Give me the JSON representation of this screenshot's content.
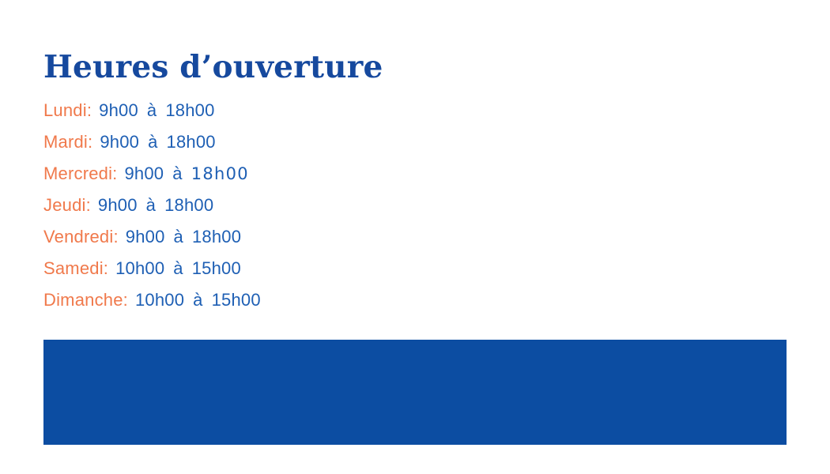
{
  "page": {
    "title": "Heures d’ouverture",
    "colors": {
      "title_blue": "#16499E",
      "hours_blue": "#1E5FB4",
      "day_orange": "#F0794B",
      "banner_blue": "#0C4DA2",
      "background": "#FFFFFF"
    }
  },
  "hours": {
    "rows": [
      {
        "day": "Lundi:",
        "start": "9h00",
        "conj": "à",
        "end": "18h00"
      },
      {
        "day": "Mardi:",
        "start": "9h00",
        "conj": "à",
        "end": "18h00"
      },
      {
        "day": "Mercredi:",
        "start": "9h00",
        "conj": "à",
        "end": "18h00"
      },
      {
        "day": "Jeudi:",
        "start": "9h00",
        "conj": "à",
        "end": "18h00"
      },
      {
        "day": "Vendredi:",
        "start": "9h00",
        "conj": "à",
        "end": "18h00"
      },
      {
        "day": "Samedi:",
        "start": "10h00",
        "conj": "à",
        "end": "15h00"
      },
      {
        "day": "Dimanche:",
        "start": "10h00",
        "conj": "à",
        "end": "15h00"
      }
    ]
  }
}
